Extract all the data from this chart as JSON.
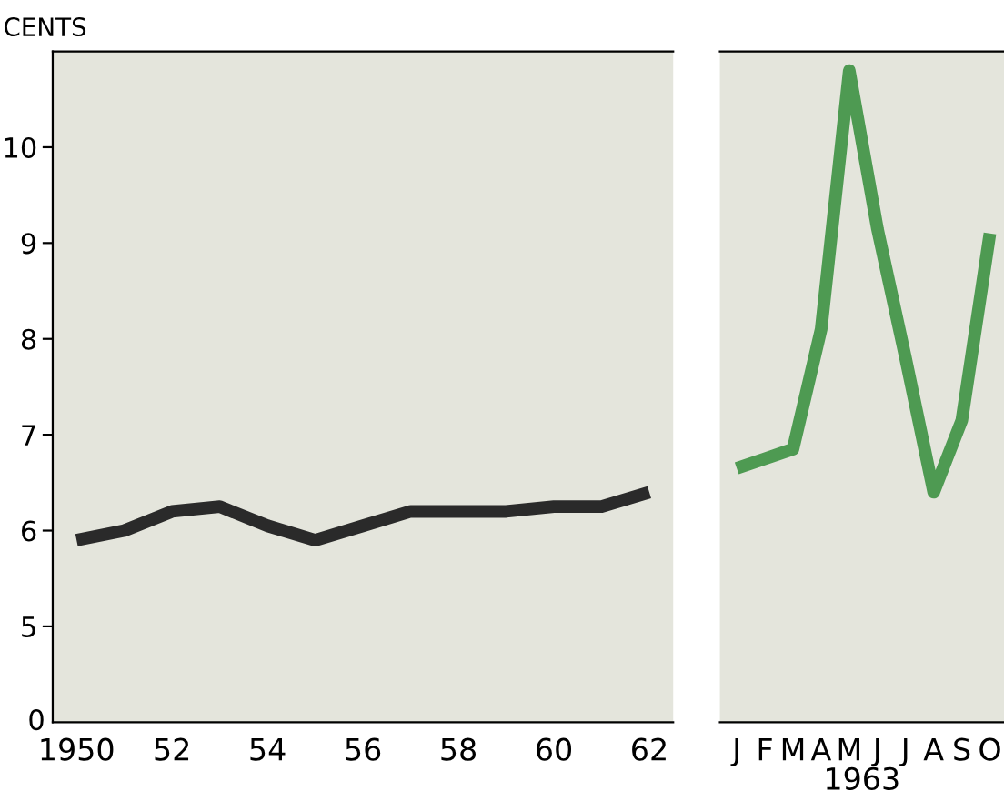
{
  "chart_data": [
    {
      "type": "line",
      "ylabel": "CENTS",
      "x": [
        1950,
        1951,
        1952,
        1953,
        1954,
        1955,
        1956,
        1957,
        1958,
        1959,
        1960,
        1961,
        1962
      ],
      "series": [
        {
          "color": "#2a2a2a",
          "values": [
            5.9,
            6.0,
            6.2,
            6.25,
            6.05,
            5.9,
            6.05,
            6.2,
            6.2,
            6.2,
            6.25,
            6.25,
            6.4
          ]
        }
      ],
      "xlim": [
        1949.5,
        1962.5
      ],
      "xticks": [
        {
          "value": 1950,
          "label": "1950"
        },
        {
          "value": 1952,
          "label": "52"
        },
        {
          "value": 1954,
          "label": "54"
        },
        {
          "value": 1956,
          "label": "56"
        },
        {
          "value": 1958,
          "label": "58"
        },
        {
          "value": 1960,
          "label": "60"
        },
        {
          "value": 1962,
          "label": "62"
        }
      ],
      "ylim": [
        4,
        11
      ],
      "yticks": [
        5,
        6,
        7,
        8,
        9,
        10
      ],
      "annotations": [
        "0"
      ],
      "grid": false,
      "legend": false
    },
    {
      "type": "line",
      "xlabel": "1963",
      "categories": [
        "J",
        "F",
        "M",
        "A",
        "M",
        "J",
        "J",
        "A",
        "S",
        "O"
      ],
      "series": [
        {
          "color": "#4e9a52",
          "values": [
            6.65,
            6.75,
            6.85,
            8.1,
            10.8,
            9.15,
            7.8,
            6.4,
            7.15,
            9.1
          ]
        }
      ],
      "ylim": [
        4,
        11
      ],
      "tick_labels": "x",
      "grid": false,
      "legend": false
    }
  ]
}
